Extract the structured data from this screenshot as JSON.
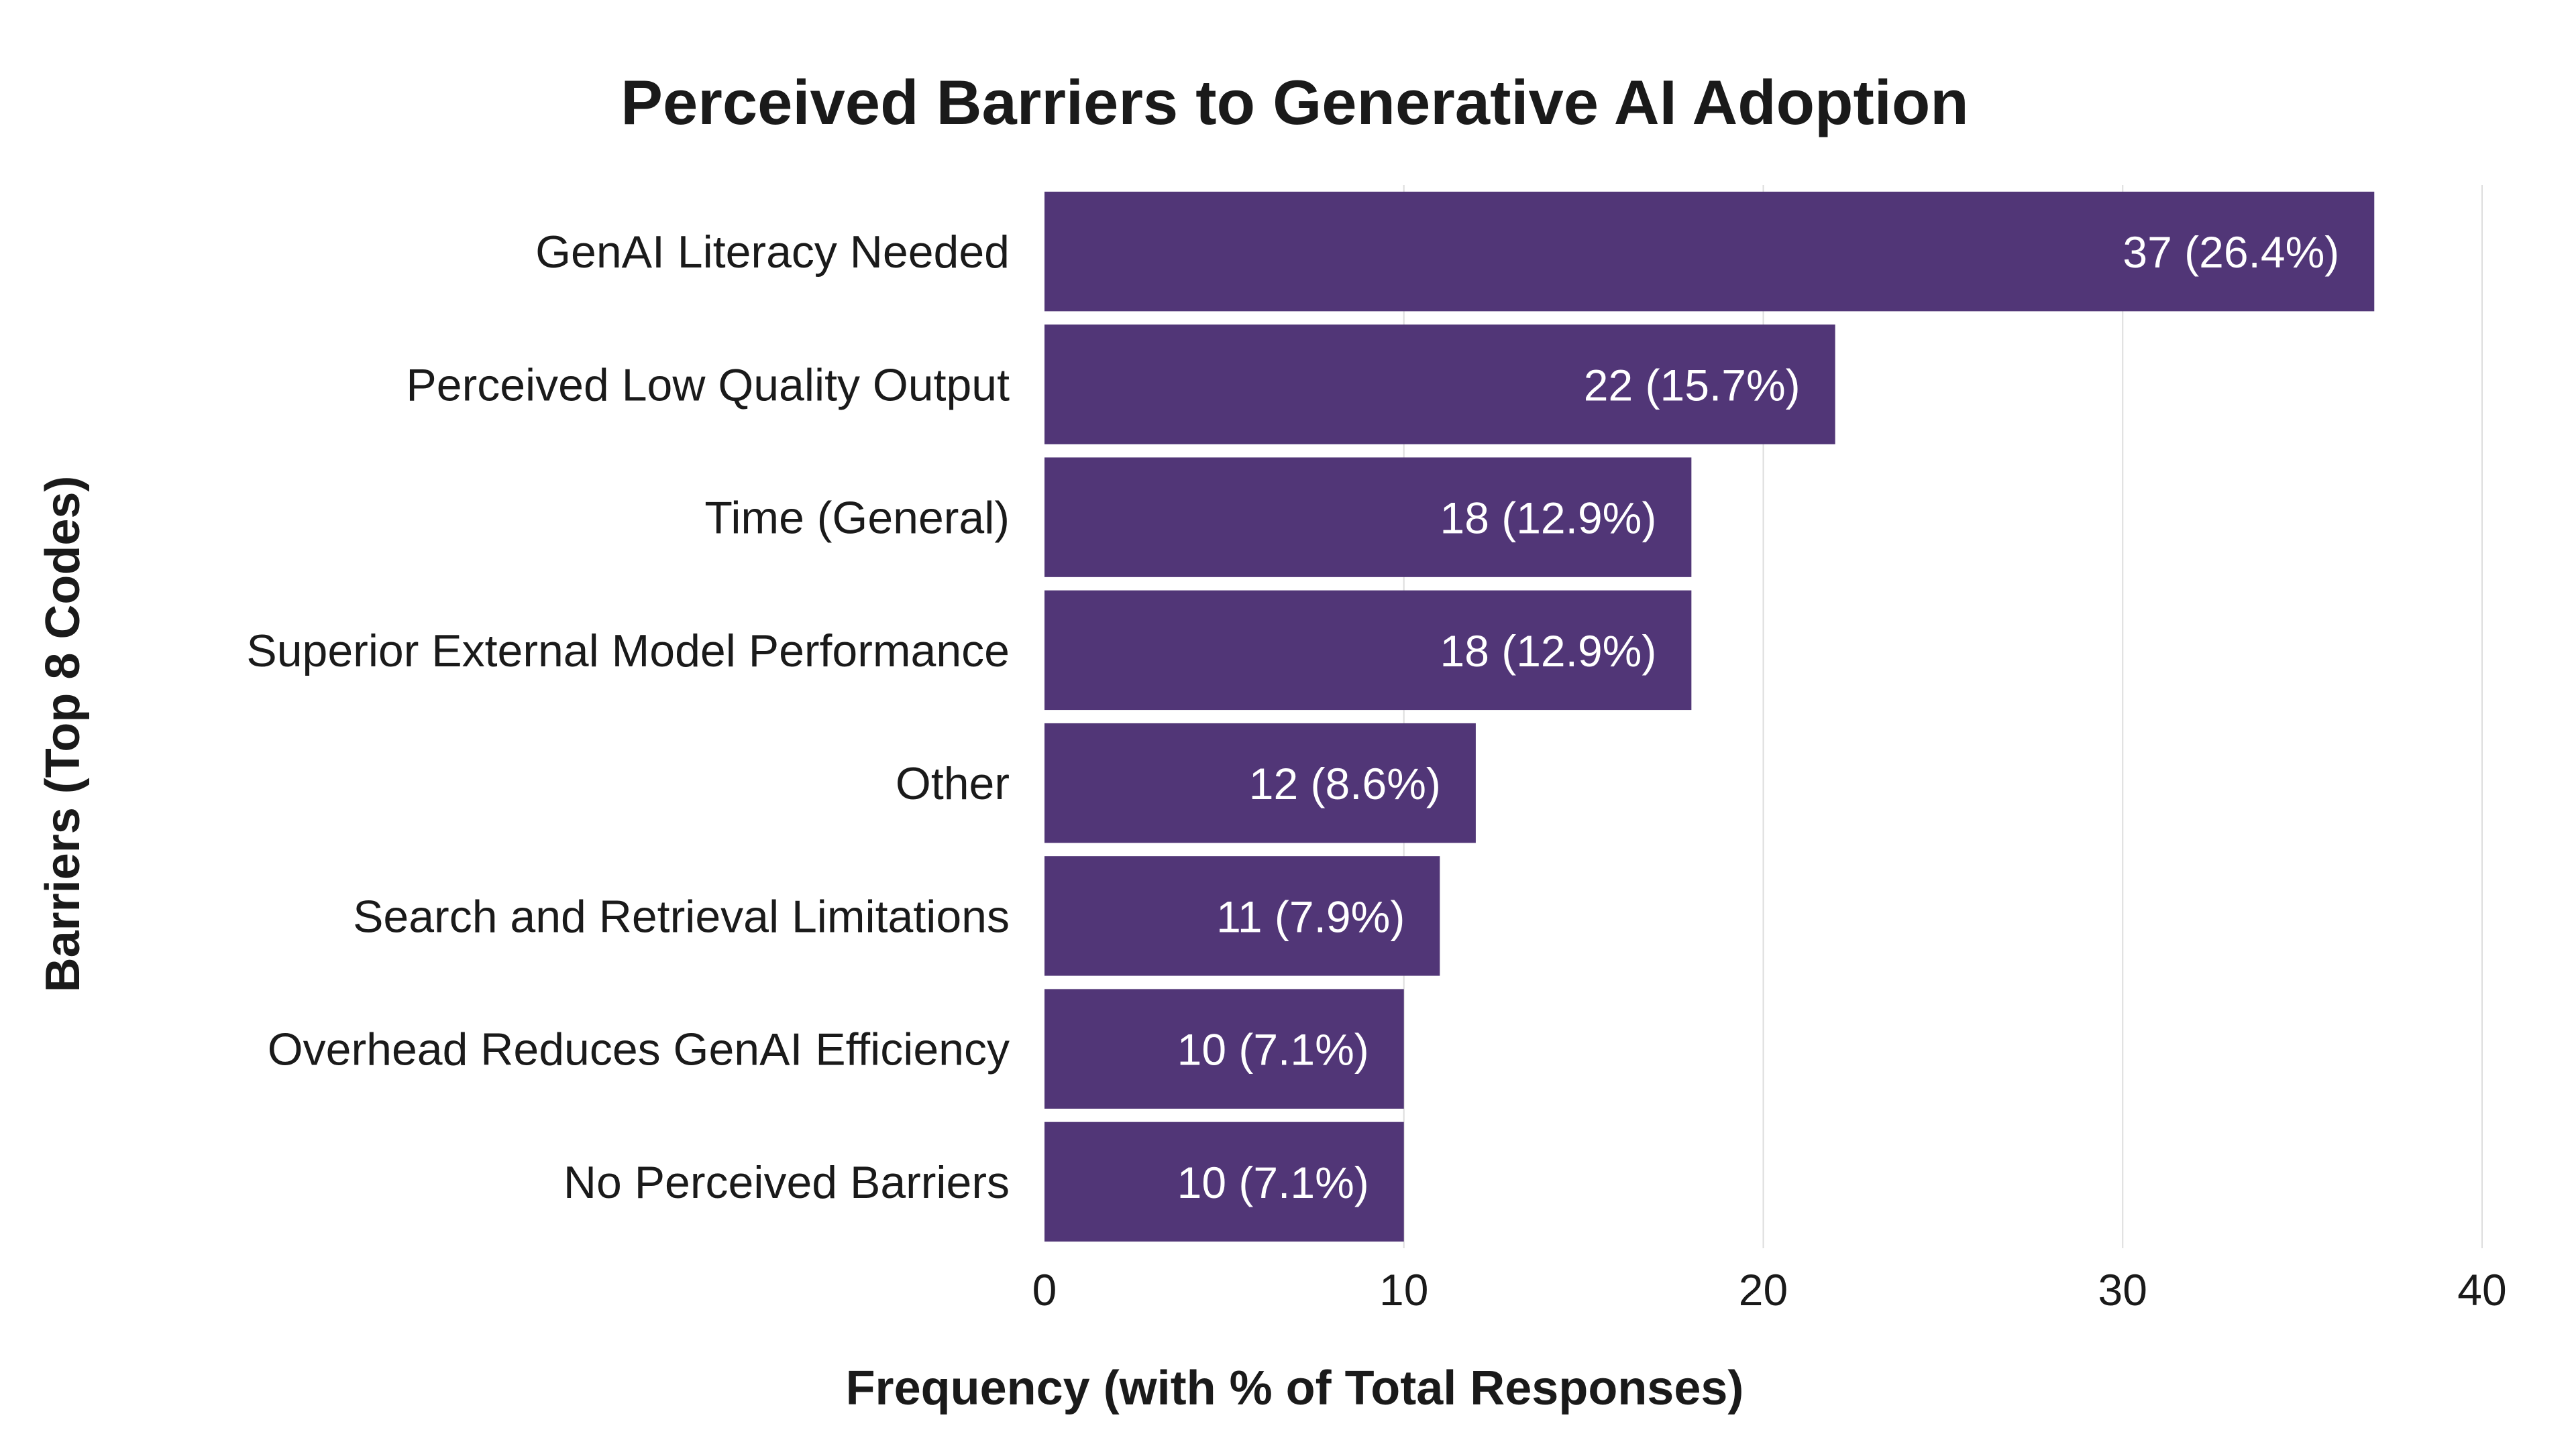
{
  "chart_data": {
    "type": "bar",
    "orientation": "horizontal",
    "title": "Perceived Barriers to Generative AI Adoption",
    "xlabel": "Frequency (with % of Total Responses)",
    "ylabel": "Barriers (Top 8 Codes)",
    "categories": [
      "GenAI Literacy Needed",
      "Perceived Low Quality Output",
      "Time (General)",
      "Superior External Model Performance",
      "Other",
      "Search and Retrieval Limitations",
      "Overhead Reduces GenAI Efficiency",
      "No Perceived Barriers"
    ],
    "values": [
      37,
      22,
      18,
      18,
      12,
      11,
      10,
      10
    ],
    "data_labels": [
      "37 (26.4%)",
      "22 (15.7%)",
      "18 (12.9%)",
      "18 (12.9%)",
      "12 (8.6%)",
      "11 (7.9%)",
      "10 (7.1%)",
      "10 (7.1%)"
    ],
    "xlim": [
      0,
      40
    ],
    "xticks": [
      "0",
      "10",
      "20",
      "30",
      "40"
    ],
    "grid": "vertical",
    "bar_color": "#513677",
    "legend": "none"
  }
}
